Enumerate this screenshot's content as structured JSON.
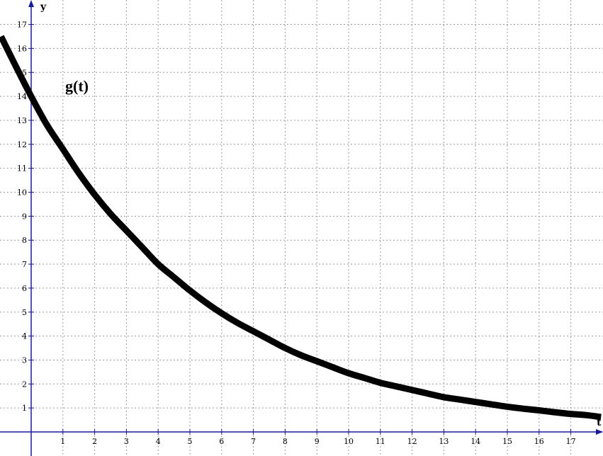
{
  "chart_data": {
    "type": "line",
    "title": "",
    "xlabel": "t",
    "ylabel": "y",
    "xlim": [
      -1,
      18
    ],
    "ylim": [
      -0.1,
      17.8
    ],
    "grid": true,
    "x_ticks": [
      1,
      2,
      3,
      4,
      5,
      6,
      7,
      8,
      9,
      10,
      11,
      12,
      13,
      14,
      15,
      16,
      17
    ],
    "y_ticks": [
      1,
      2,
      3,
      4,
      5,
      6,
      7,
      8,
      9,
      10,
      11,
      12,
      13,
      14,
      15,
      16,
      17
    ],
    "x_tick_labels": [
      "1",
      "2",
      "3",
      "4",
      "5",
      "6",
      "7",
      "8",
      "9",
      "10",
      "11",
      "12",
      "13",
      "14",
      "15",
      "16",
      "17"
    ],
    "y_tick_labels": [
      "1",
      "2",
      "3",
      "4",
      "5",
      "6",
      "7",
      "8",
      "9",
      "10",
      "11",
      "12",
      "13",
      "14",
      "15",
      "16",
      "17"
    ],
    "series": [
      {
        "name": "g(t)",
        "color": "#000000",
        "x": [
          -0.95,
          -0.5,
          0,
          0.5,
          1,
          1.5,
          2,
          2.5,
          3,
          3.5,
          4,
          4.5,
          5,
          5.5,
          6,
          6.5,
          7,
          7.5,
          8,
          8.5,
          9,
          9.5,
          10,
          10.5,
          11,
          11.5,
          12,
          12.5,
          13,
          13.5,
          14,
          14.5,
          15,
          15.5,
          16,
          16.5,
          17,
          17.5,
          17.95
        ],
        "y": [
          16.5,
          15.3,
          14.0,
          12.8,
          11.8,
          10.8,
          9.9,
          9.1,
          8.4,
          7.7,
          7.0,
          6.45,
          5.9,
          5.4,
          4.95,
          4.55,
          4.2,
          3.85,
          3.5,
          3.2,
          2.95,
          2.7,
          2.45,
          2.25,
          2.05,
          1.9,
          1.75,
          1.6,
          1.45,
          1.35,
          1.25,
          1.15,
          1.05,
          0.97,
          0.9,
          0.82,
          0.75,
          0.7,
          0.62
        ]
      }
    ]
  }
}
